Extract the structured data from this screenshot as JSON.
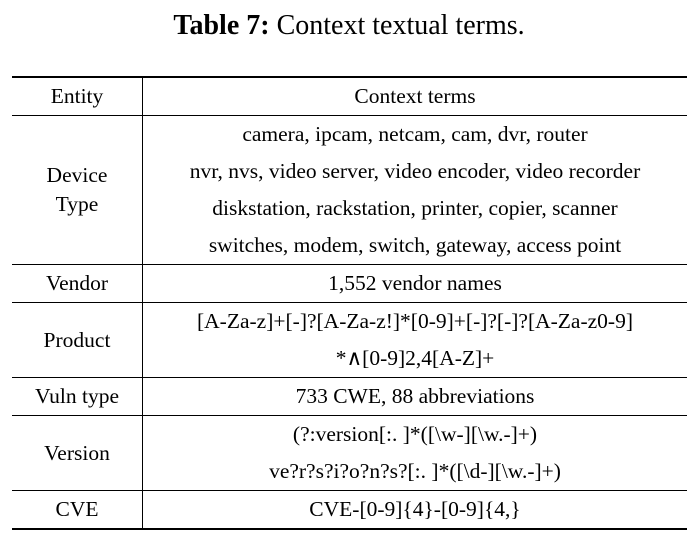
{
  "caption": {
    "label": "Table 7:",
    "text": " Context textual terms."
  },
  "table": {
    "headers": {
      "entity": "Entity",
      "terms": "Context terms"
    },
    "rows": [
      {
        "entity_lines": [
          "Device",
          "Type"
        ],
        "terms": [
          "camera, ipcam, netcam, cam, dvr, router",
          "nvr, nvs, video server, video encoder, video recorder",
          "diskstation, rackstation, printer, copier, scanner",
          "switches, modem, switch, gateway, access point"
        ]
      },
      {
        "entity_lines": [
          "Vendor"
        ],
        "terms": [
          "1,552 vendor names"
        ]
      },
      {
        "entity_lines": [
          "Product"
        ],
        "terms": [
          "[A-Za-z]+[-]?[A-Za-z!]*[0-9]+[-]?[-]?[A-Za-z0-9]",
          "*∧[0-9]2,4[A-Z]+"
        ]
      },
      {
        "entity_lines": [
          "Vuln type"
        ],
        "terms": [
          "733 CWE, 88 abbreviations"
        ]
      },
      {
        "entity_lines": [
          "Version"
        ],
        "terms": [
          "(?:version[:. ]*([\\w-][\\w.-]+)",
          "ve?r?s?i?o?n?s?[:. ]*([\\d-][\\w.-]+)"
        ]
      },
      {
        "entity_lines": [
          "CVE"
        ],
        "terms": [
          "CVE-[0-9]{4}-[0-9]{4,}"
        ]
      }
    ]
  }
}
